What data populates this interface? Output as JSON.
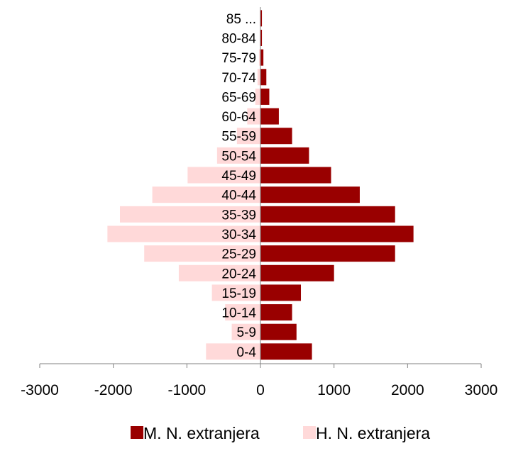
{
  "chart_data": {
    "type": "bar",
    "orientation": "horizontal",
    "stacked": "population-pyramid",
    "categories": [
      "0-4",
      "5-9",
      "10-14",
      "15-19",
      "20-24",
      "25-29",
      "30-34",
      "35-39",
      "40-44",
      "45-49",
      "50-54",
      "55-59",
      "60-64",
      "65-69",
      "70-74",
      "75-79",
      "80-84",
      "85 ..."
    ],
    "series": [
      {
        "name": "M. N. extranjera",
        "color": "#990000",
        "values": [
          700,
          490,
          430,
          550,
          1000,
          1830,
          2080,
          1830,
          1350,
          960,
          660,
          430,
          250,
          120,
          80,
          40,
          20,
          20
        ]
      },
      {
        "name": "H. N. extranjera",
        "color": "#ffd9d9",
        "values": [
          -740,
          -390,
          -480,
          -660,
          -1110,
          -1580,
          -2080,
          -1910,
          -1470,
          -990,
          -590,
          -320,
          -180,
          -70,
          -40,
          -20,
          -10,
          -10
        ]
      }
    ],
    "title": "",
    "xlabel": "",
    "ylabel": "",
    "xlim": [
      -3000,
      3000
    ],
    "xticks": [
      "-3000",
      "-2000",
      "-1000",
      "0",
      "1000",
      "2000",
      "3000"
    ],
    "grid": false,
    "legend_position": "bottom"
  }
}
